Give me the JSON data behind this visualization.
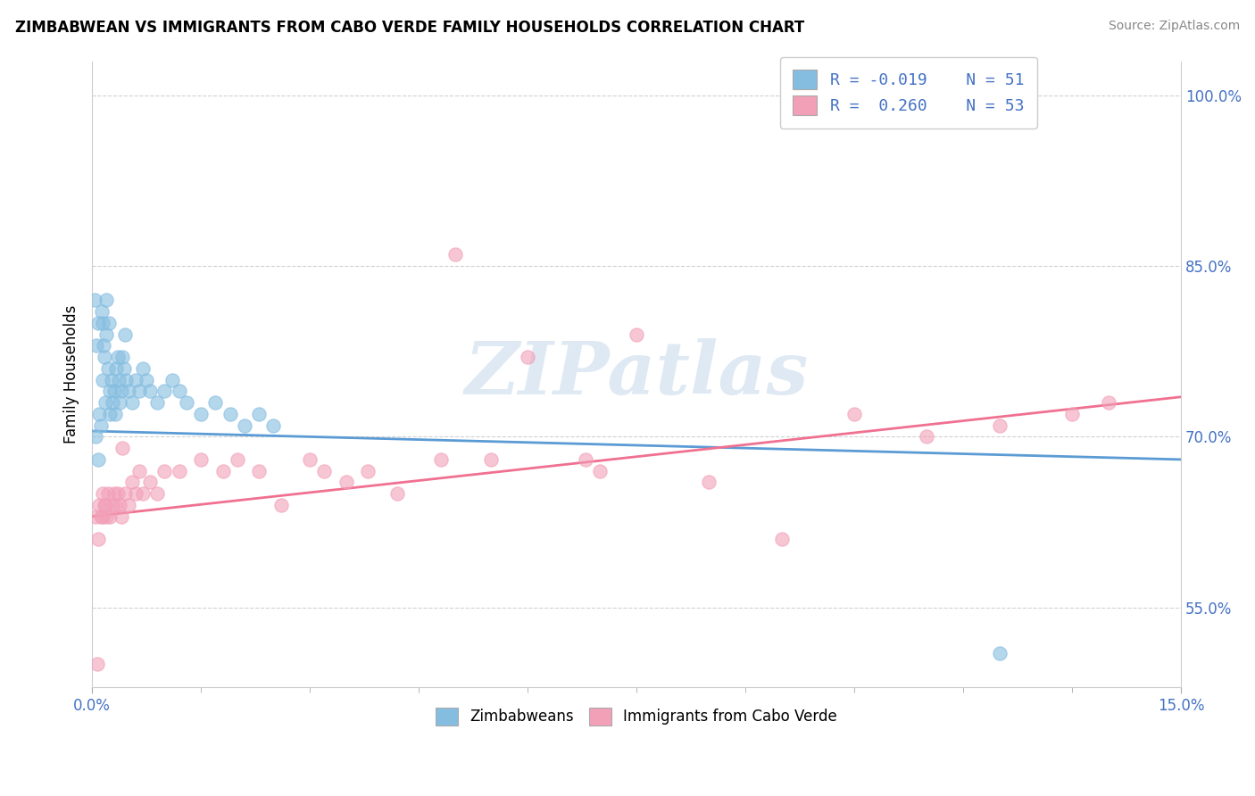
{
  "title": "ZIMBABWEAN VS IMMIGRANTS FROM CABO VERDE FAMILY HOUSEHOLDS CORRELATION CHART",
  "source": "Source: ZipAtlas.com",
  "ylabel": "Family Households",
  "xlim": [
    0.0,
    15.0
  ],
  "ylim": [
    48.0,
    103.0
  ],
  "yticks": [
    55.0,
    70.0,
    85.0,
    100.0
  ],
  "ytick_labels": [
    "55.0%",
    "70.0%",
    "85.0%",
    "100.0%"
  ],
  "color_blue": "#85bde0",
  "color_pink": "#f2a0b8",
  "line_blue": "#5b9bd5",
  "line_pink": "#f07090",
  "zimbabwean_x": [
    0.05,
    0.08,
    0.1,
    0.12,
    0.14,
    0.15,
    0.17,
    0.18,
    0.2,
    0.22,
    0.24,
    0.25,
    0.27,
    0.28,
    0.3,
    0.32,
    0.33,
    0.35,
    0.37,
    0.38,
    0.4,
    0.42,
    0.44,
    0.45,
    0.47,
    0.5,
    0.55,
    0.6,
    0.65,
    0.7,
    0.75,
    0.8,
    0.9,
    1.0,
    1.1,
    1.2,
    1.3,
    1.5,
    1.7,
    1.9,
    2.1,
    2.3,
    2.5,
    0.03,
    0.06,
    0.09,
    0.13,
    0.16,
    0.19,
    0.23,
    12.5
  ],
  "zimbabwean_y": [
    70,
    68,
    72,
    71,
    75,
    80,
    77,
    73,
    79,
    76,
    74,
    72,
    75,
    73,
    74,
    72,
    76,
    77,
    75,
    73,
    74,
    77,
    76,
    79,
    75,
    74,
    73,
    75,
    74,
    76,
    75,
    74,
    73,
    74,
    75,
    74,
    73,
    72,
    73,
    72,
    71,
    72,
    71,
    82,
    78,
    80,
    81,
    78,
    82,
    80,
    51
  ],
  "caboverde_x": [
    0.05,
    0.08,
    0.1,
    0.12,
    0.15,
    0.17,
    0.2,
    0.22,
    0.25,
    0.28,
    0.3,
    0.32,
    0.35,
    0.38,
    0.4,
    0.45,
    0.5,
    0.55,
    0.6,
    0.65,
    0.7,
    0.8,
    0.9,
    1.0,
    1.2,
    1.5,
    1.8,
    2.0,
    2.3,
    2.6,
    3.0,
    3.2,
    3.5,
    4.2,
    5.0,
    5.5,
    6.0,
    6.8,
    7.5,
    8.5,
    9.5,
    10.5,
    11.5,
    12.5,
    13.5,
    14.0,
    0.07,
    0.14,
    0.18,
    0.42,
    3.8,
    4.8,
    7.0
  ],
  "caboverde_y": [
    63,
    61,
    64,
    63,
    65,
    64,
    63,
    65,
    63,
    64,
    65,
    64,
    65,
    64,
    63,
    65,
    64,
    66,
    65,
    67,
    65,
    66,
    65,
    67,
    67,
    68,
    67,
    68,
    67,
    64,
    68,
    67,
    66,
    65,
    86,
    68,
    77,
    68,
    79,
    66,
    61,
    72,
    70,
    71,
    72,
    73,
    50,
    63,
    64,
    69,
    67,
    68,
    67
  ]
}
